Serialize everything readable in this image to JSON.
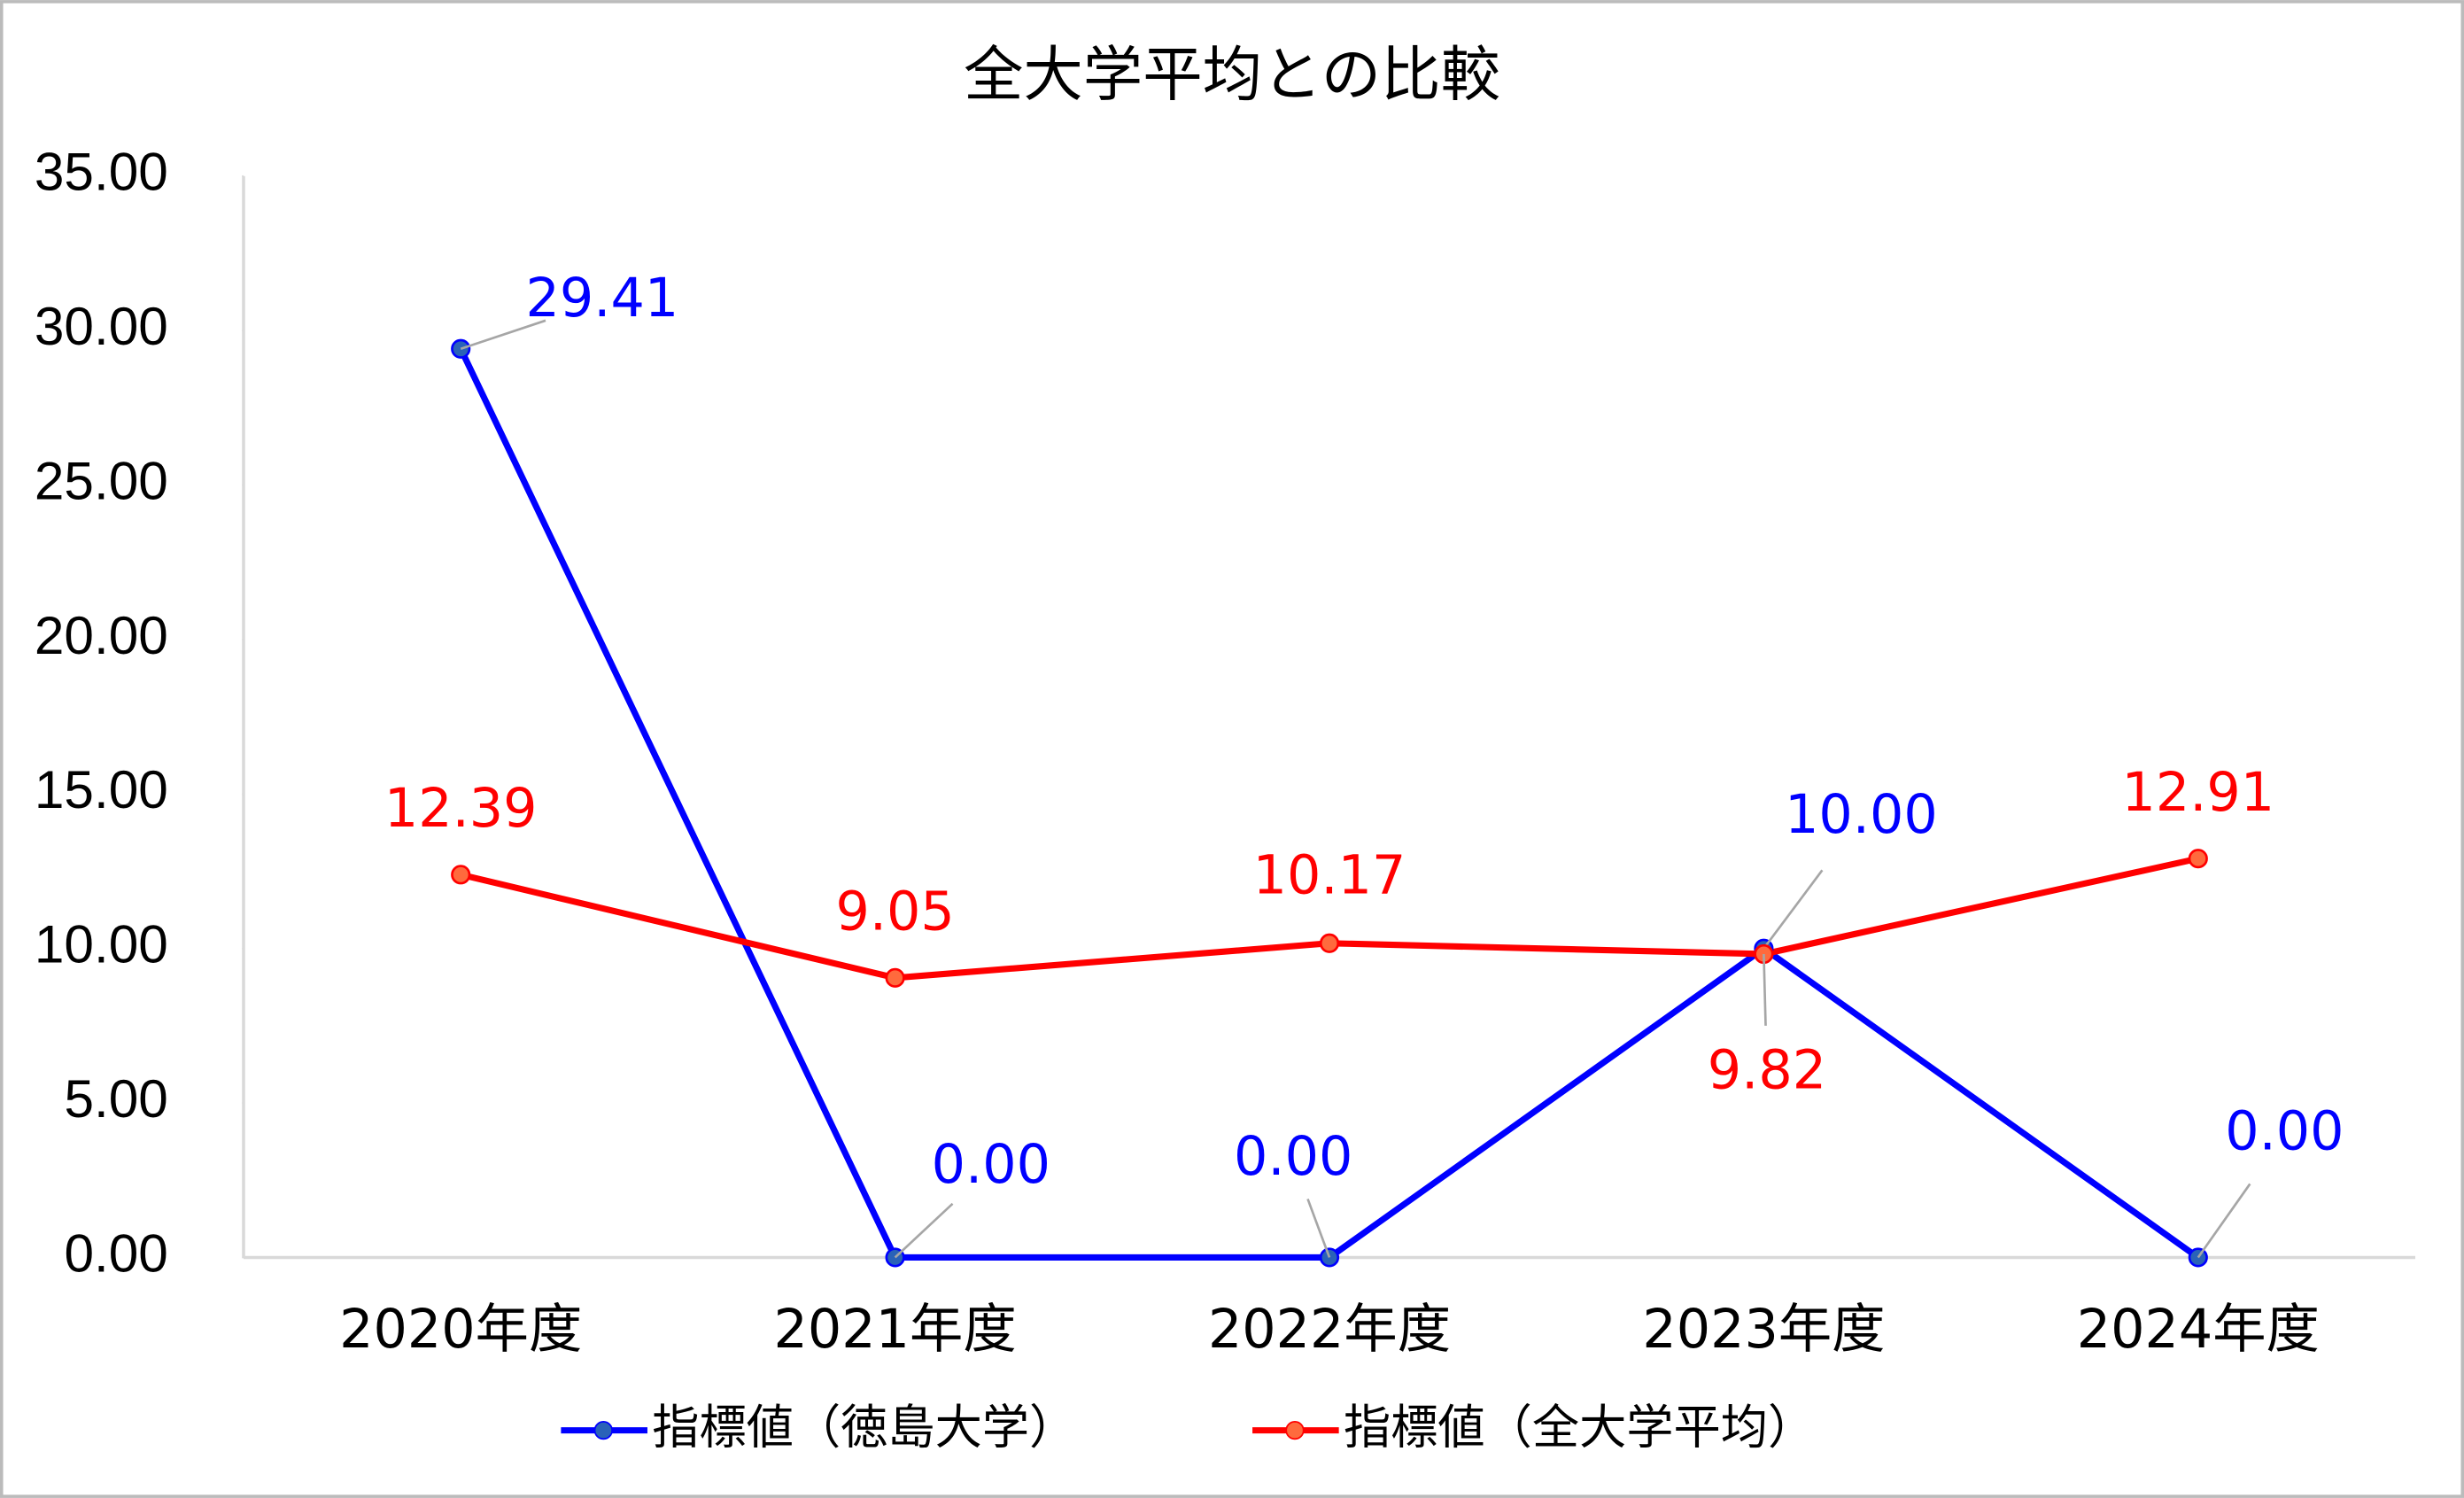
{
  "chart_data": {
    "type": "line",
    "title": "全大学平均との比較",
    "categories": [
      "2020年度",
      "2021年度",
      "2022年度",
      "2023年度",
      "2024年度"
    ],
    "series": [
      {
        "name": "指標値（徳島大学）",
        "color": "#0000ff",
        "values": [
          29.41,
          0,
          0,
          10,
          0
        ],
        "value_labels": [
          "29.41",
          "0.00",
          "0.00",
          "10.00",
          "0.00"
        ]
      },
      {
        "name": "指標値（全大学平均）",
        "color": "#ff0000",
        "values": [
          12.39,
          9.05,
          10.17,
          9.82,
          12.91
        ],
        "value_labels": [
          "12.39",
          "9.05",
          "10.17",
          "9.82",
          "12.91"
        ]
      }
    ],
    "ylim": [
      0,
      35
    ],
    "yticks": [
      {
        "value": 0,
        "label": "0.00"
      },
      {
        "value": 5,
        "label": "5.00"
      },
      {
        "value": 10,
        "label": "10.00"
      },
      {
        "value": 15,
        "label": "15.00"
      },
      {
        "value": 20,
        "label": "20.00"
      },
      {
        "value": 25,
        "label": "25.00"
      },
      {
        "value": 30,
        "label": "30.00"
      },
      {
        "value": 35,
        "label": "35.00"
      }
    ],
    "grid": false,
    "legend": "bottom"
  }
}
